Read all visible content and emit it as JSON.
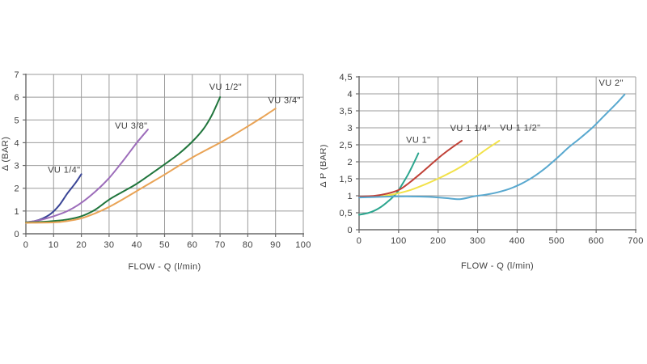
{
  "page": {
    "background": "#ffffff",
    "description_colors": {
      "grid": "#9b9b9b",
      "axis": "#6a6a6a",
      "text": "#3d3d3d"
    }
  },
  "chart_data": [
    {
      "id": "left-chart",
      "type": "line",
      "title": "",
      "xlabel": "FLOW - Q (l/min)",
      "ylabel": "Δ (BAR)",
      "xlim": [
        0,
        100
      ],
      "ylim": [
        0,
        7
      ],
      "grid": true,
      "legend_position": "inline-labels",
      "xticks": [
        0,
        10,
        20,
        30,
        40,
        50,
        60,
        70,
        80,
        90,
        100
      ],
      "xtick_labels": [
        "0",
        "10",
        "20",
        "30",
        "40",
        "50",
        "60",
        "70",
        "80",
        "90",
        "100"
      ],
      "yticks": [
        0,
        1,
        2,
        3,
        4,
        5,
        6,
        7
      ],
      "ytick_labels": [
        "0",
        "1",
        "2",
        "3",
        "4",
        "5",
        "6",
        "7"
      ],
      "series": [
        {
          "name": "VU 1/4\"",
          "color": "#3a4596",
          "label_pos": [
            13.8,
            2.68
          ],
          "points": [
            [
              0,
              0.5
            ],
            [
              3,
              0.55
            ],
            [
              6,
              0.67
            ],
            [
              9,
              0.88
            ],
            [
              12,
              1.25
            ],
            [
              15,
              1.78
            ],
            [
              18,
              2.25
            ],
            [
              20,
              2.62
            ]
          ]
        },
        {
          "name": "VU 3/8\"",
          "color": "#9c6cba",
          "label_pos": [
            38,
            4.62
          ],
          "points": [
            [
              0,
              0.5
            ],
            [
              5,
              0.6
            ],
            [
              10,
              0.77
            ],
            [
              15,
              1.0
            ],
            [
              20,
              1.36
            ],
            [
              25,
              1.85
            ],
            [
              30,
              2.45
            ],
            [
              35,
              3.2
            ],
            [
              40,
              4.0
            ],
            [
              44,
              4.58
            ]
          ]
        },
        {
          "name": "VU 1/2\"",
          "color": "#20753c",
          "label_pos": [
            72,
            6.32
          ],
          "points": [
            [
              0,
              0.5
            ],
            [
              5,
              0.52
            ],
            [
              10,
              0.56
            ],
            [
              15,
              0.63
            ],
            [
              20,
              0.77
            ],
            [
              25,
              1.06
            ],
            [
              30,
              1.5
            ],
            [
              35,
              1.85
            ],
            [
              40,
              2.2
            ],
            [
              45,
              2.62
            ],
            [
              50,
              3.05
            ],
            [
              55,
              3.5
            ],
            [
              60,
              4.05
            ],
            [
              64,
              4.6
            ],
            [
              67,
              5.2
            ],
            [
              70,
              6.0
            ]
          ]
        },
        {
          "name": "VU 3/4\"",
          "color": "#e9a355",
          "label_pos": [
            93.2,
            5.74
          ],
          "points": [
            [
              0,
              0.48
            ],
            [
              10,
              0.5
            ],
            [
              15,
              0.56
            ],
            [
              20,
              0.68
            ],
            [
              25,
              0.9
            ],
            [
              30,
              1.18
            ],
            [
              35,
              1.52
            ],
            [
              40,
              1.88
            ],
            [
              45,
              2.24
            ],
            [
              50,
              2.6
            ],
            [
              55,
              2.98
            ],
            [
              60,
              3.35
            ],
            [
              65,
              3.68
            ],
            [
              70,
              4.0
            ],
            [
              75,
              4.35
            ],
            [
              80,
              4.72
            ],
            [
              85,
              5.1
            ],
            [
              90,
              5.5
            ]
          ]
        }
      ]
    },
    {
      "id": "right-chart",
      "type": "line",
      "title": "",
      "xlabel": "FLOW - Q (l/min)",
      "ylabel": "Δ P (BAR)",
      "xlim": [
        0,
        700
      ],
      "ylim": [
        0,
        4.5
      ],
      "grid": true,
      "legend_position": "inline-labels",
      "xticks": [
        0,
        100,
        200,
        300,
        400,
        500,
        600,
        700
      ],
      "xtick_labels": [
        "0",
        "100",
        "200",
        "300",
        "400",
        "500",
        "600",
        "700"
      ],
      "yticks": [
        0,
        0.5,
        1,
        1.5,
        2,
        2.5,
        3,
        3.5,
        4,
        4.5
      ],
      "ytick_labels": [
        "0",
        "0,5",
        "1",
        "1,5",
        "2",
        "2,5",
        "3",
        "3,5",
        "4",
        "4,5"
      ],
      "series": [
        {
          "name": "VU 1\"",
          "color": "#2ba58e",
          "label_pos": [
            150,
            2.56
          ],
          "points": [
            [
              0,
              0.44
            ],
            [
              25,
              0.5
            ],
            [
              50,
              0.63
            ],
            [
              75,
              0.85
            ],
            [
              95,
              1.08
            ],
            [
              110,
              1.35
            ],
            [
              125,
              1.65
            ],
            [
              140,
              2.0
            ],
            [
              150,
              2.25
            ]
          ]
        },
        {
          "name": "VU 1 1/4\"",
          "color": "#c04137",
          "label_pos": [
            282,
            2.9
          ],
          "points": [
            [
              0,
              0.97
            ],
            [
              40,
              1.0
            ],
            [
              70,
              1.06
            ],
            [
              100,
              1.17
            ],
            [
              120,
              1.32
            ],
            [
              150,
              1.6
            ],
            [
              180,
              1.9
            ],
            [
              210,
              2.2
            ],
            [
              235,
              2.42
            ],
            [
              260,
              2.62
            ]
          ]
        },
        {
          "name": "VU 1 1/2\"",
          "color": "#f2e24a",
          "label_pos": [
            408,
            2.92
          ],
          "points": [
            [
              55,
              0.98
            ],
            [
              90,
              1.05
            ],
            [
              130,
              1.17
            ],
            [
              170,
              1.35
            ],
            [
              210,
              1.56
            ],
            [
              250,
              1.8
            ],
            [
              290,
              2.1
            ],
            [
              320,
              2.35
            ],
            [
              355,
              2.62
            ]
          ]
        },
        {
          "name": "VU 2\"",
          "color": "#58a8cf",
          "label_pos": [
            638,
            4.24
          ],
          "points": [
            [
              0,
              0.95
            ],
            [
              60,
              0.97
            ],
            [
              120,
              0.98
            ],
            [
              170,
              0.97
            ],
            [
              220,
              0.93
            ],
            [
              255,
              0.9
            ],
            [
              290,
              0.98
            ],
            [
              320,
              1.03
            ],
            [
              350,
              1.1
            ],
            [
              380,
              1.2
            ],
            [
              410,
              1.35
            ],
            [
              440,
              1.55
            ],
            [
              470,
              1.8
            ],
            [
              500,
              2.1
            ],
            [
              530,
              2.42
            ],
            [
              560,
              2.7
            ],
            [
              590,
              3.0
            ],
            [
              620,
              3.35
            ],
            [
              650,
              3.7
            ],
            [
              672,
              3.98
            ]
          ]
        }
      ]
    }
  ]
}
